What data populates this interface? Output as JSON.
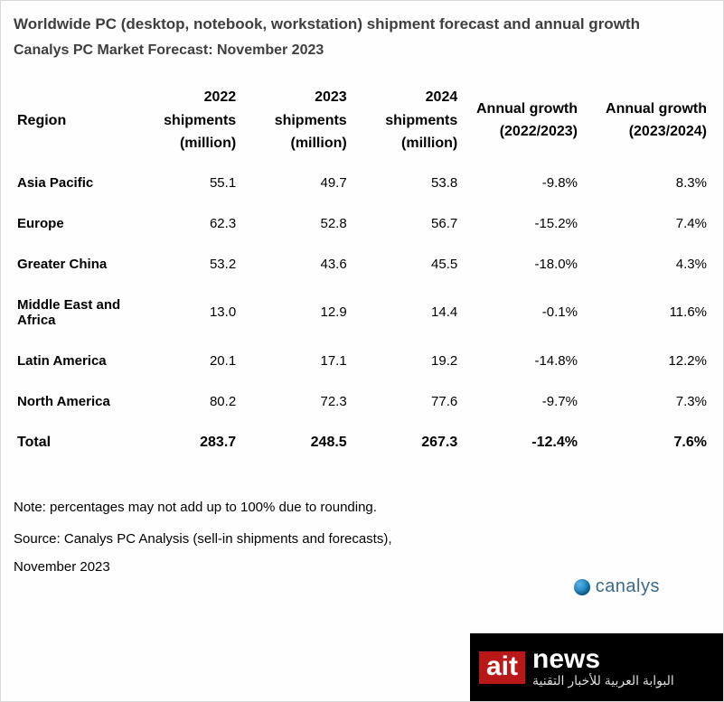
{
  "title": "Worldwide PC (desktop, notebook, workstation) shipment forecast and annual growth",
  "subtitle": "Canalys PC Market Forecast: November 2023",
  "table": {
    "columns": [
      "Region",
      "2022 shipments (million)",
      "2023 shipments (million)",
      "2024 shipments (million)",
      "Annual growth (2022/2023)",
      "Annual growth (2023/2024)"
    ],
    "rows": [
      {
        "region": "Asia Pacific",
        "s2022": "55.1",
        "s2023": "49.7",
        "s2024": "53.8",
        "g2223": "-9.8%",
        "g2324": "8.3%"
      },
      {
        "region": "Europe",
        "s2022": "62.3",
        "s2023": "52.8",
        "s2024": "56.7",
        "g2223": "-15.2%",
        "g2324": "7.4%"
      },
      {
        "region": "Greater China",
        "s2022": "53.2",
        "s2023": "43.6",
        "s2024": "45.5",
        "g2223": "-18.0%",
        "g2324": "4.3%"
      },
      {
        "region": "Middle East and Africa",
        "s2022": "13.0",
        "s2023": "12.9",
        "s2024": "14.4",
        "g2223": "-0.1%",
        "g2324": "11.6%"
      },
      {
        "region": "Latin America",
        "s2022": "20.1",
        "s2023": "17.1",
        "s2024": "19.2",
        "g2223": "-14.8%",
        "g2324": "12.2%"
      },
      {
        "region": "North America",
        "s2022": "80.2",
        "s2023": "72.3",
        "s2024": "77.6",
        "g2223": "-9.7%",
        "g2324": "7.3%"
      }
    ],
    "total": {
      "region": "Total",
      "s2022": "283.7",
      "s2023": "248.5",
      "s2024": "267.3",
      "g2223": "-12.4%",
      "g2324": "7.6%"
    }
  },
  "note": "Note: percentages may not add up to 100% due to rounding.",
  "source": "Source: Canalys PC Analysis (sell-in shipments and forecasts),",
  "date": "November 2023",
  "canalys": {
    "label": "canalys"
  },
  "aitnews": {
    "brand1": "ait",
    "brand2": "news",
    "tagline": "البوابة العربية للأخبار التقنية"
  }
}
